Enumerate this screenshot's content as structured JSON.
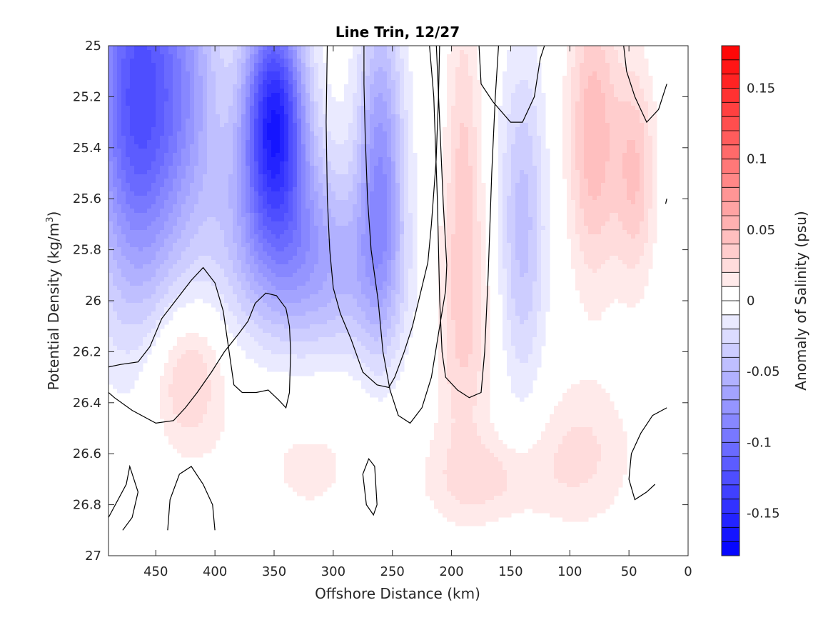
{
  "chart_data": {
    "type": "heatmap",
    "subtype": "filled-contour",
    "title": "Line Trin, 12/27",
    "xlabel": "Offshore Distance (km)",
    "ylabel_main": "Potential Density (kg/m",
    "ylabel_sup": "3",
    "ylabel_close": ")",
    "colorbar_label": "Anomaly of Salinity (psu)",
    "x_reversed": true,
    "xlim": [
      0,
      490
    ],
    "ylim": [
      25,
      27
    ],
    "y_reversed": true,
    "xticks": [
      {
        "value": 450,
        "label": "450"
      },
      {
        "value": 400,
        "label": "400"
      },
      {
        "value": 350,
        "label": "350"
      },
      {
        "value": 300,
        "label": "300"
      },
      {
        "value": 250,
        "label": "250"
      },
      {
        "value": 200,
        "label": "200"
      },
      {
        "value": 150,
        "label": "150"
      },
      {
        "value": 100,
        "label": "100"
      },
      {
        "value": 50,
        "label": "50"
      },
      {
        "value": 0,
        "label": "0"
      }
    ],
    "yticks": [
      {
        "value": 25.0,
        "label": "25"
      },
      {
        "value": 25.2,
        "label": "25.2"
      },
      {
        "value": 25.4,
        "label": "25.4"
      },
      {
        "value": 25.6,
        "label": "25.6"
      },
      {
        "value": 25.8,
        "label": "25.8"
      },
      {
        "value": 26.0,
        "label": "26"
      },
      {
        "value": 26.2,
        "label": "26.2"
      },
      {
        "value": 26.4,
        "label": "26.4"
      },
      {
        "value": 26.6,
        "label": "26.6"
      },
      {
        "value": 26.8,
        "label": "26.8"
      },
      {
        "value": 27.0,
        "label": "27"
      }
    ],
    "colorbar": {
      "range": [
        -0.18,
        0.18
      ],
      "levels": 36,
      "colormap": "blue-white-red",
      "ticks": [
        {
          "value": 0.15,
          "label": "0.15"
        },
        {
          "value": 0.1,
          "label": "0.1"
        },
        {
          "value": 0.05,
          "label": "0.05"
        },
        {
          "value": 0,
          "label": "0"
        },
        {
          "value": -0.05,
          "label": "-0.05"
        },
        {
          "value": -0.1,
          "label": "-0.1"
        },
        {
          "value": -0.15,
          "label": "-0.15"
        }
      ]
    },
    "anomaly_features": [
      {
        "x": 465,
        "y": 25.2,
        "amp": -0.125,
        "sx": 28,
        "sy": 0.55
      },
      {
        "x": 350,
        "y": 25.25,
        "amp": -0.14,
        "sx": 18,
        "sy": 0.3
      },
      {
        "x": 350,
        "y": 25.7,
        "amp": -0.06,
        "sx": 35,
        "sy": 0.3
      },
      {
        "x": 420,
        "y": 25.15,
        "amp": -0.04,
        "sx": 20,
        "sy": 0.4
      },
      {
        "x": 260,
        "y": 25.5,
        "amp": -0.075,
        "sx": 14,
        "sy": 0.45
      },
      {
        "x": 300,
        "y": 25.9,
        "amp": -0.04,
        "sx": 40,
        "sy": 0.25
      },
      {
        "x": 140,
        "y": 25.7,
        "amp": -0.045,
        "sx": 14,
        "sy": 0.45
      },
      {
        "x": 190,
        "y": 25.45,
        "amp": 0.028,
        "sx": 10,
        "sy": 0.5
      },
      {
        "x": 80,
        "y": 25.35,
        "amp": 0.048,
        "sx": 15,
        "sy": 0.4
      },
      {
        "x": 45,
        "y": 25.5,
        "amp": 0.04,
        "sx": 12,
        "sy": 0.3
      },
      {
        "x": 425,
        "y": 26.3,
        "amp": 0.035,
        "sx": 22,
        "sy": 0.2
      },
      {
        "x": 190,
        "y": 26.1,
        "amp": 0.025,
        "sx": 18,
        "sy": 0.4
      },
      {
        "x": 170,
        "y": 26.7,
        "amp": 0.022,
        "sx": 35,
        "sy": 0.12
      },
      {
        "x": 90,
        "y": 26.6,
        "amp": 0.022,
        "sx": 30,
        "sy": 0.2
      },
      {
        "x": 320,
        "y": 26.6,
        "amp": 0.012,
        "sx": 50,
        "sy": 0.3
      }
    ],
    "zero_contours": [
      [
        [
          490,
          26.26
        ],
        [
          480,
          26.25
        ],
        [
          465,
          26.24
        ],
        [
          455,
          26.18
        ],
        [
          445,
          26.07
        ],
        [
          430,
          25.98
        ],
        [
          420,
          25.92
        ],
        [
          410,
          25.87
        ],
        [
          400,
          25.93
        ],
        [
          393,
          26.04
        ],
        [
          388,
          26.2
        ],
        [
          384,
          26.33
        ],
        [
          377,
          26.36
        ],
        [
          365,
          26.36
        ],
        [
          355,
          26.35
        ],
        [
          346,
          26.39
        ],
        [
          340,
          26.42
        ],
        [
          337,
          26.36
        ],
        [
          336,
          26.2
        ],
        [
          337,
          26.1
        ],
        [
          340,
          26.03
        ],
        [
          348,
          25.98
        ],
        [
          357,
          25.97
        ],
        [
          366,
          26.01
        ],
        [
          372,
          26.08
        ],
        [
          380,
          26.13
        ],
        [
          392,
          26.2
        ],
        [
          403,
          26.28
        ],
        [
          415,
          26.36
        ],
        [
          425,
          26.42
        ],
        [
          435,
          26.47
        ],
        [
          450,
          26.48
        ],
        [
          470,
          26.43
        ],
        [
          485,
          26.38
        ],
        [
          490,
          26.36
        ]
      ],
      [
        [
          213,
          24.98
        ],
        [
          210,
          25.3
        ],
        [
          207,
          25.62
        ],
        [
          204,
          25.86
        ],
        [
          205,
          25.96
        ],
        [
          210,
          26.1
        ],
        [
          217,
          26.3
        ],
        [
          225,
          26.42
        ],
        [
          235,
          26.48
        ],
        [
          245,
          26.45
        ],
        [
          252,
          26.35
        ],
        [
          258,
          26.2
        ],
        [
          262,
          26.0
        ],
        [
          268,
          25.8
        ],
        [
          271,
          25.6
        ],
        [
          273,
          25.35
        ],
        [
          274,
          25.15
        ],
        [
          274,
          24.98
        ]
      ],
      [
        [
          210,
          24.98
        ],
        [
          211,
          25.2
        ],
        [
          213,
          25.45
        ],
        [
          217,
          25.7
        ],
        [
          220,
          25.85
        ],
        [
          233,
          26.1
        ],
        [
          240,
          26.2
        ],
        [
          248,
          26.3
        ],
        [
          253,
          26.34
        ],
        [
          263,
          26.33
        ],
        [
          275,
          26.28
        ],
        [
          285,
          26.15
        ],
        [
          294,
          26.05
        ],
        [
          300,
          25.95
        ],
        [
          303,
          25.8
        ],
        [
          305,
          25.6
        ],
        [
          306,
          25.3
        ],
        [
          305,
          24.98
        ]
      ],
      [
        [
          177,
          24.98
        ],
        [
          175,
          25.15
        ],
        [
          165,
          25.22
        ],
        [
          150,
          25.3
        ],
        [
          140,
          25.3
        ],
        [
          130,
          25.2
        ],
        [
          125,
          25.05
        ],
        [
          120,
          24.98
        ]
      ],
      [
        [
          160,
          24.98
        ],
        [
          163,
          25.2
        ],
        [
          166,
          25.5
        ],
        [
          169,
          25.9
        ],
        [
          172,
          26.2
        ],
        [
          175,
          26.36
        ],
        [
          185,
          26.38
        ],
        [
          195,
          26.35
        ],
        [
          205,
          26.3
        ],
        [
          208,
          26.2
        ],
        [
          210,
          26.0
        ],
        [
          212,
          25.6
        ],
        [
          215,
          25.2
        ],
        [
          219,
          24.98
        ]
      ],
      [
        [
          490,
          26.85
        ],
        [
          475,
          26.72
        ],
        [
          472,
          26.65
        ],
        [
          465,
          26.75
        ],
        [
          470,
          26.85
        ],
        [
          478,
          26.9
        ]
      ],
      [
        [
          440,
          26.9
        ],
        [
          438,
          26.78
        ],
        [
          430,
          26.68
        ],
        [
          420,
          26.65
        ],
        [
          410,
          26.72
        ],
        [
          402,
          26.8
        ],
        [
          400,
          26.9
        ]
      ],
      [
        [
          263,
          26.8
        ],
        [
          265,
          26.65
        ],
        [
          270,
          26.62
        ],
        [
          275,
          26.68
        ],
        [
          272,
          26.8
        ],
        [
          266,
          26.84
        ],
        [
          263,
          26.8
        ]
      ],
      [
        [
          18,
          26.42
        ],
        [
          30,
          26.45
        ],
        [
          40,
          26.52
        ],
        [
          48,
          26.6
        ],
        [
          50,
          26.7
        ],
        [
          45,
          26.78
        ],
        [
          35,
          26.75
        ],
        [
          28,
          26.72
        ]
      ],
      [
        [
          55,
          24.98
        ],
        [
          52,
          25.1
        ],
        [
          45,
          25.2
        ],
        [
          35,
          25.3
        ],
        [
          25,
          25.25
        ],
        [
          18,
          25.15
        ]
      ],
      [
        [
          18,
          25.6
        ],
        [
          19,
          25.62
        ]
      ]
    ]
  }
}
